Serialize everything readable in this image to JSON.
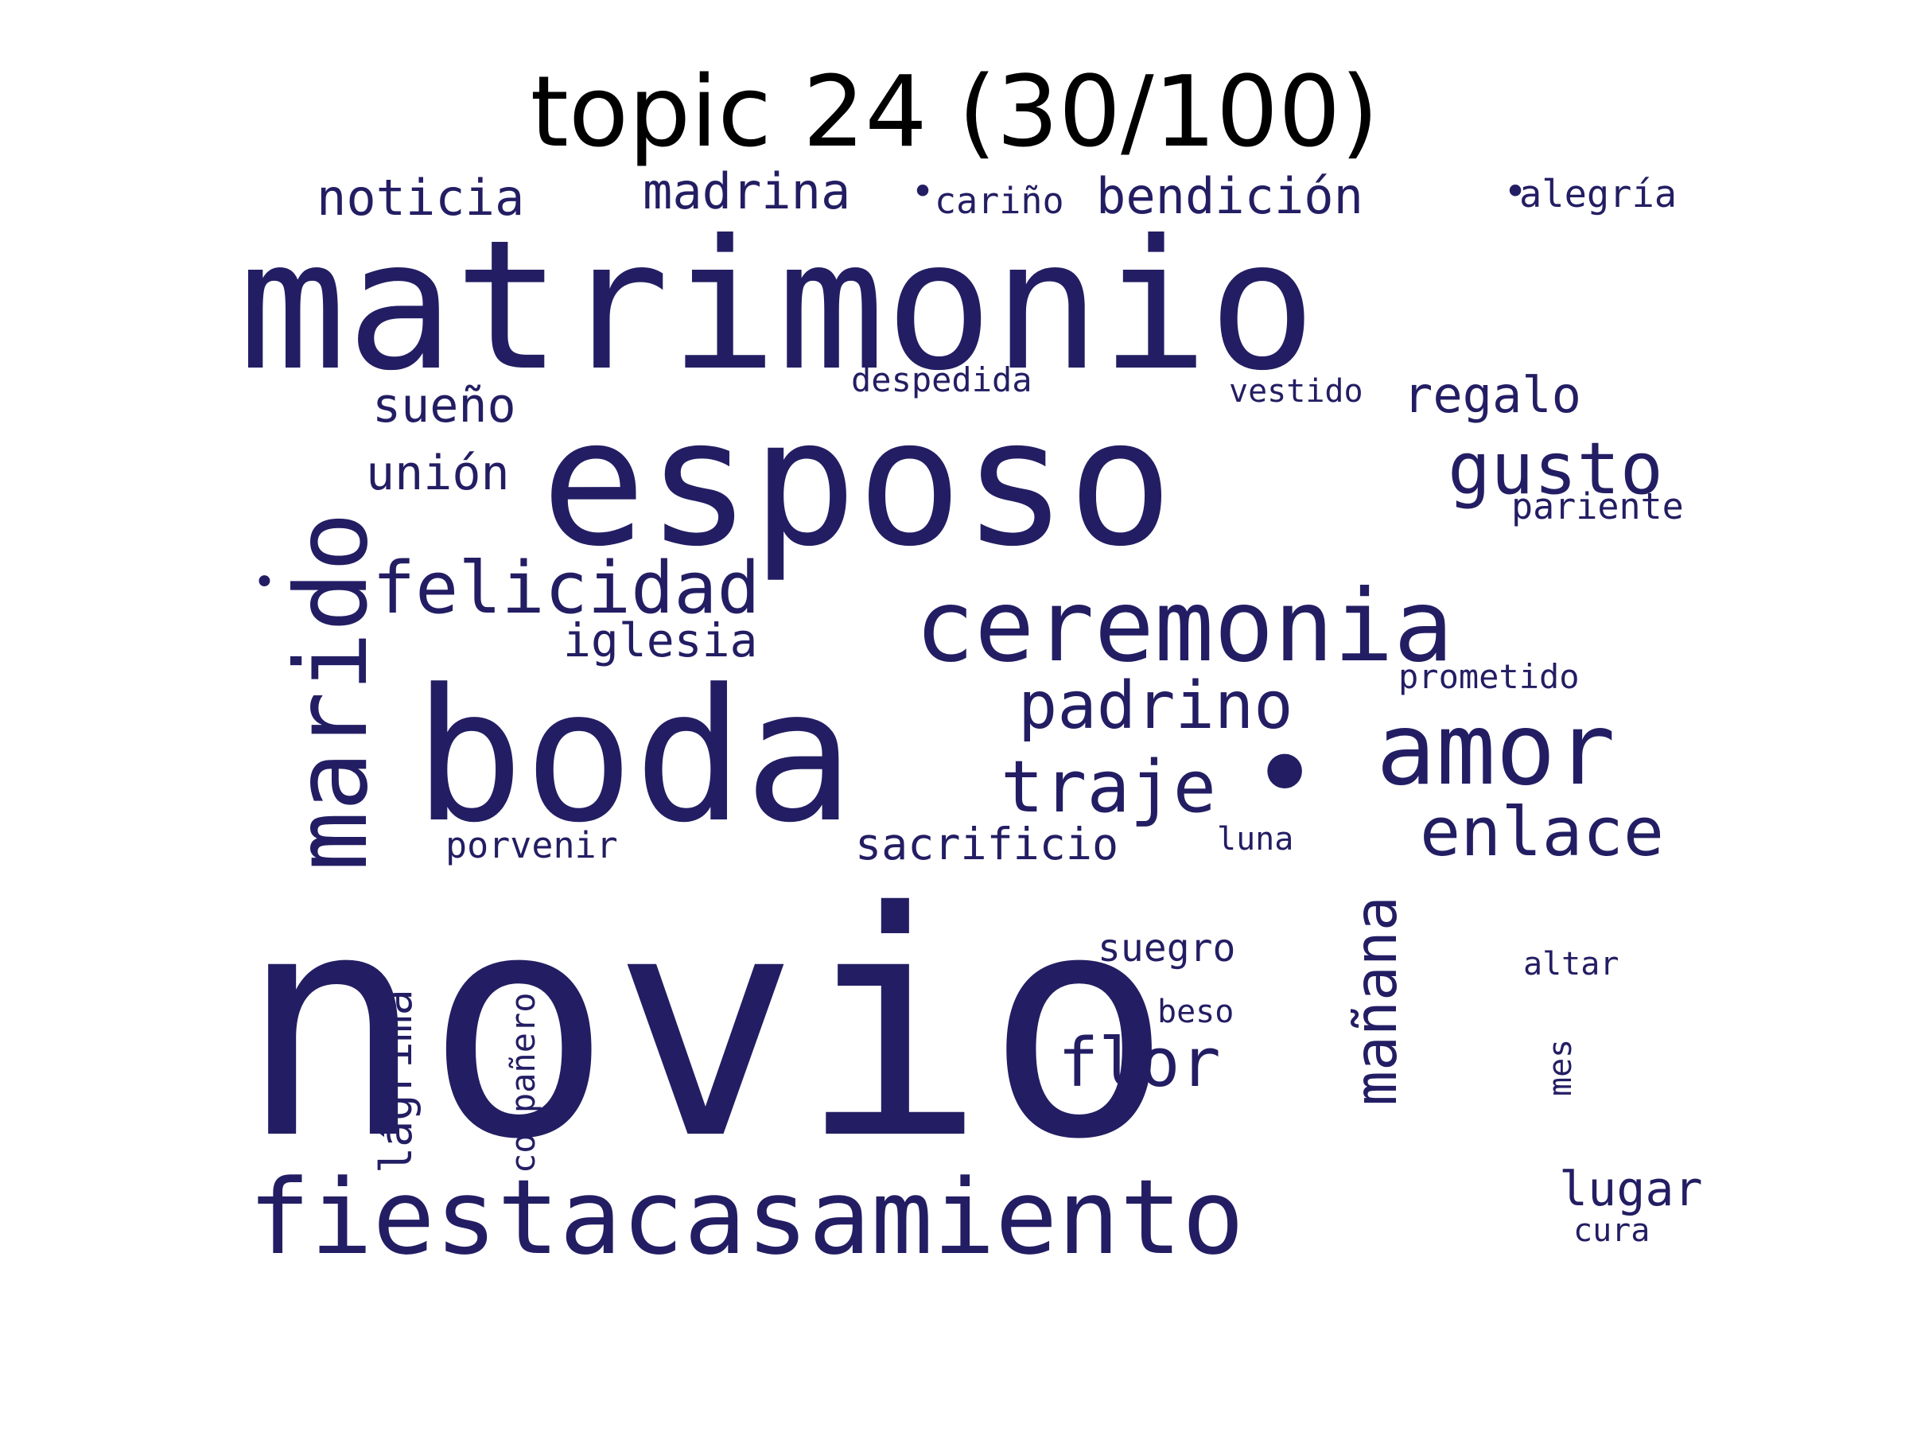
{
  "title": "topic 24 (30/100)",
  "colors": {
    "word": "#231E63",
    "title": "#000000",
    "background": "#FFFFFF"
  },
  "words": [
    {
      "text": "novio",
      "vertical": false
    },
    {
      "text": "matrimonio",
      "vertical": false
    },
    {
      "text": "esposo",
      "vertical": false
    },
    {
      "text": "boda",
      "vertical": false
    },
    {
      "text": "fiestacasamiento",
      "vertical": false
    },
    {
      "text": "marido",
      "vertical": true
    },
    {
      "text": "ceremonia",
      "vertical": false
    },
    {
      "text": "amor",
      "vertical": false
    },
    {
      "text": "felicidad",
      "vertical": false
    },
    {
      "text": "padrino",
      "vertical": false
    },
    {
      "text": "gusto",
      "vertical": false
    },
    {
      "text": "traje",
      "vertical": false
    },
    {
      "text": "enlace",
      "vertical": false
    },
    {
      "text": "flor",
      "vertical": false
    },
    {
      "text": "mañana",
      "vertical": true
    },
    {
      "text": "noticia",
      "vertical": false
    },
    {
      "text": "madrina",
      "vertical": false
    },
    {
      "text": "bendición",
      "vertical": false
    },
    {
      "text": "regalo",
      "vertical": false
    },
    {
      "text": "lágrima",
      "vertical": true
    },
    {
      "text": "lugar",
      "vertical": false
    },
    {
      "text": "sueño",
      "vertical": false
    },
    {
      "text": "unión",
      "vertical": false
    },
    {
      "text": "iglesia",
      "vertical": false
    },
    {
      "text": "sacrificio",
      "vertical": false
    },
    {
      "text": "suegro",
      "vertical": false
    },
    {
      "text": "compañero",
      "vertical": true
    },
    {
      "text": "alegría",
      "vertical": false
    },
    {
      "text": "cariño",
      "vertical": false
    },
    {
      "text": "pariente",
      "vertical": false
    },
    {
      "text": "porvenir",
      "vertical": false
    },
    {
      "text": "prometido",
      "vertical": false
    },
    {
      "text": "despedida",
      "vertical": false
    },
    {
      "text": "vestido",
      "vertical": false
    },
    {
      "text": "altar",
      "vertical": false
    },
    {
      "text": "mes",
      "vertical": true
    },
    {
      "text": "beso",
      "vertical": false
    },
    {
      "text": "luna",
      "vertical": false
    },
    {
      "text": "cura",
      "vertical": false
    },
    {
      "text": "•",
      "vertical": false
    },
    {
      "text": "•",
      "vertical": false
    },
    {
      "text": "•",
      "vertical": false
    },
    {
      "text": "•",
      "vertical": false
    }
  ]
}
